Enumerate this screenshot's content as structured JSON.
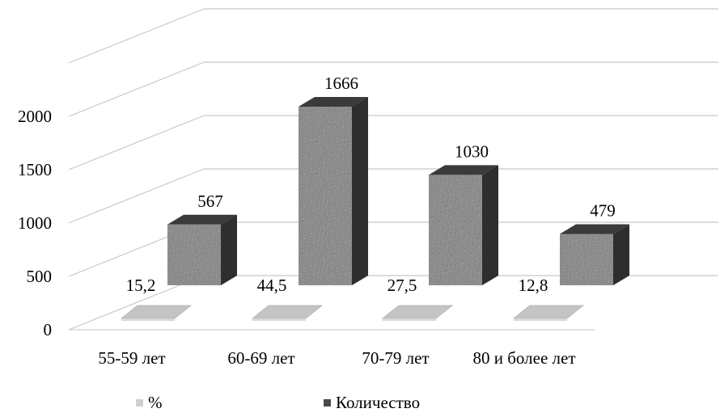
{
  "chart_data": {
    "type": "bar",
    "style": "3d-column",
    "categories": [
      "55-59 лет",
      "60-69 лет",
      "70-79 лет",
      "80 и более  лет"
    ],
    "series": [
      {
        "name": "%",
        "values": [
          15.2,
          44.5,
          27.5,
          12.8
        ],
        "labels": [
          "15,2",
          "44,5",
          "27,5",
          "12,8"
        ]
      },
      {
        "name": "Количество",
        "values": [
          567,
          1666,
          1030,
          479
        ],
        "labels": [
          "567",
          "1666",
          "1030",
          "479"
        ]
      }
    ],
    "y_ticks": [
      "0",
      "500",
      "1000",
      "1500",
      "2000"
    ],
    "ylim": [
      0,
      2500
    ],
    "grid": true,
    "legend_position": "bottom"
  },
  "colors": {
    "pct_series": "#bdbdbd",
    "count_series": "#555555",
    "grid": "#c8c8c8"
  }
}
